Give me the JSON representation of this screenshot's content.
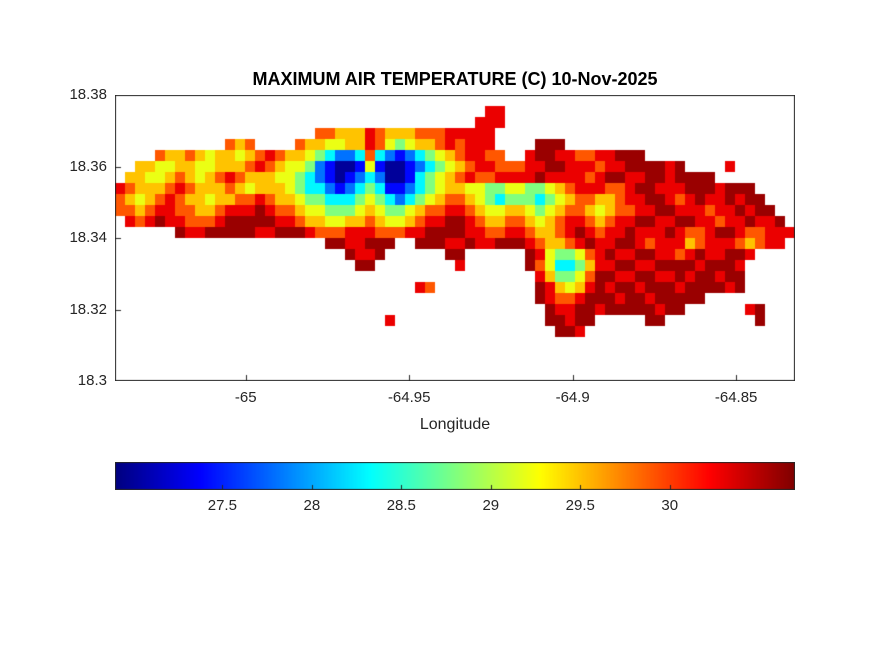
{
  "figure": {
    "background": "#ffffff",
    "axis_color": "#262626",
    "title_color": "#000000"
  },
  "chart_data": {
    "type": "heatmap",
    "title": "MAXIMUM AIR TEMPERATURE (C) 10-Nov-2025",
    "note": "Gridded max air temperature map of an island; values estimated from jet colormap colors; '.' = sea (no data)",
    "x_axis": {
      "label": "Longitude",
      "lim": [
        -65.04,
        -64.832
      ],
      "ticks": [
        -65,
        -64.95,
        -64.9,
        -64.85
      ],
      "tick_labels": [
        "-65",
        "-64.95",
        "-64.9",
        "-64.85"
      ]
    },
    "y_axis": {
      "label": "",
      "lim": [
        18.3,
        18.38
      ],
      "ticks": [
        18.3,
        18.32,
        18.34,
        18.36,
        18.38
      ],
      "tick_labels": [
        "18.3",
        "18.32",
        "18.34",
        "18.36",
        "18.38"
      ]
    },
    "colormap": "jet",
    "cmin": 26.9,
    "cmax": 30.7,
    "colorbar": {
      "orientation": "horizontal",
      "ticks": [
        27.5,
        28,
        28.5,
        29,
        29.5,
        30
      ],
      "tick_labels": [
        "27.5",
        "28",
        "28.5",
        "29",
        "29.5",
        "30"
      ]
    },
    "grid": {
      "nrows": 26,
      "ncols": 68,
      "encoding": {
        ".": null,
        "a": 27.0,
        "b": 27.4,
        "c": 27.8,
        "d": 28.3,
        "e": 28.8,
        "f": 29.2,
        "g": 29.5,
        "h": 29.9,
        "i": 30.3,
        "j": 30.6
      },
      "rows": [
        "",
        ".....................................ii",
        "....................................iii",
        "....................hhgggihggghhhiiiii",
        "...........hgh....hggffggihfefgghihiii....jjj",
        "....hgghgfggfghihggfedccdhdcbcdefghiihh..ijjiihhiijjj",
        "..ggffggffggghihgffecbaabfbaabcdefghiihhhiijjiiihiijjjjij....i",
        ".ggffghgfghihgggffedcbabcdcaabdefghihhiiiijiiiihijjiijjijjjj",
        "ihggghihggghgfgggfeddcbcdedbbcdefggffeeffeefghiiihhijjiiijjjijjj",
        "hgfghihggfgghhihggfeedddefedcdefghhgfedeeedefghhgghiijjihijiijijj",
        "hhghiihhgghiiijihhgffeeefgfeefghhiihgffggfefghhgfghhiijjiiihiijijj",
        ".ihijiihhhijjjjjiihggffgghgffghiijjihgghhgfghiihghiijjiijjiihiijiij",
        "......jiijjjjjiijjjihhhiiihhhiijjjjiihhiihgghijihiijiiijihhijjihhiiij",
        ".....................jjiijjj..jjjiijiijjjihgghijiijjihiiighiiihghii",
        ".......................jiij......jj......jifeefhijiijjiihijiijji",
        "........................jj........i......jhfddegiijjiijjjjijjji",
        "..........................................igeefhjjiijjiijijjijj",
        "..............................ih..........jigfgijijjijjjijjjjij",
        "..........................................jihhijjjijjijjjjj",
        "...........................................jiijjijjjjjijj......ij",
        "...........................i...............jjijj.....jj.........j",
        "............................................jji",
        "",
        "",
        "",
        ""
      ]
    }
  }
}
